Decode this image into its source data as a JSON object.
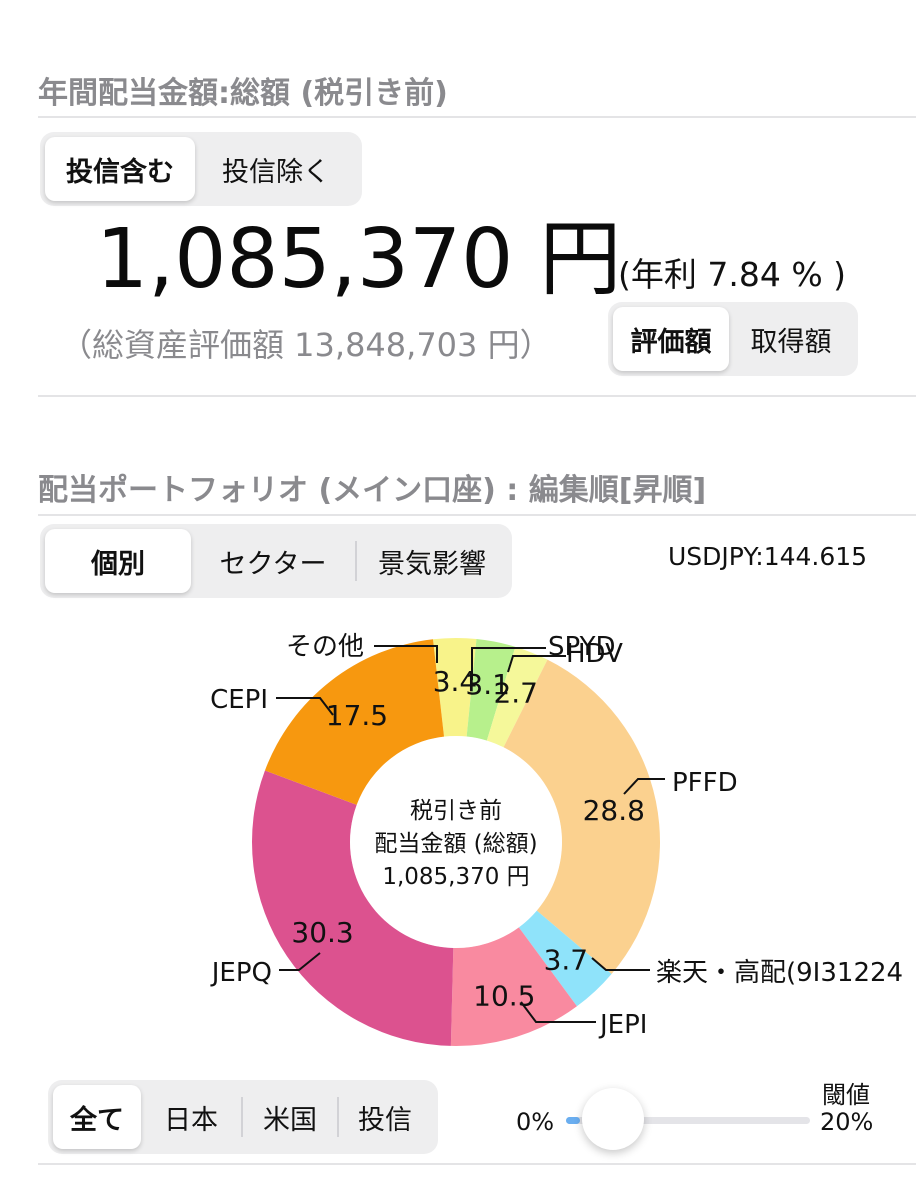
{
  "header": {
    "title": "年間配当金額:総額 (税引き前)"
  },
  "fund_toggle": {
    "options": [
      "投信含む",
      "投信除く"
    ],
    "selected": "投信含む"
  },
  "summary": {
    "amount": "1,085,370 円",
    "yield_text": "(年利 7.84 % )",
    "total_assets_text": "（総資産評価額 13,848,703 円）"
  },
  "basis_toggle": {
    "options": [
      "評価額",
      "取得額"
    ],
    "selected": "評価額"
  },
  "portfolio": {
    "title": "配当ポートフォリオ (メイン口座) : 編集順[昇順]",
    "usdjpy": "USDJPY:144.615"
  },
  "view_toggle": {
    "options": [
      "個別",
      "セクター",
      "景気影響"
    ],
    "selected": "個別"
  },
  "chart_center": {
    "line1": "税引き前",
    "line2": "配当金額 (総額)",
    "line3": "1,085,370 円"
  },
  "chart_data": {
    "type": "pie",
    "variant": "donut",
    "unit": "%",
    "slices": [
      {
        "name": "その他",
        "value": 3.4,
        "label": "3.4",
        "color": "#f8f38a"
      },
      {
        "name": "SPYD",
        "value": 3.1,
        "label": "3.1",
        "color": "#b7f08c"
      },
      {
        "name": "HDV",
        "value": 2.7,
        "label": "2.7",
        "color": "#f5f89a"
      },
      {
        "name": "PFFD",
        "value": 28.8,
        "label": "28.8",
        "color": "#fbd18f"
      },
      {
        "name": "楽天・高配(9I31224",
        "value": 3.7,
        "label": "3.7",
        "color": "#8fe3fa"
      },
      {
        "name": "JEPI",
        "value": 10.5,
        "label": "10.5",
        "color": "#f98aa0"
      },
      {
        "name": "JEPQ",
        "value": 30.3,
        "label": "30.3",
        "color": "#dc528f"
      },
      {
        "name": "CEPI",
        "value": 17.5,
        "label": "17.5",
        "color": "#f7980f"
      }
    ]
  },
  "region_filter": {
    "options": [
      "全て",
      "日本",
      "米国",
      "投信"
    ],
    "selected": "全て"
  },
  "threshold": {
    "label": "閾値",
    "min_label": "0%",
    "max_label": "20%",
    "value_fraction": 0.0
  }
}
